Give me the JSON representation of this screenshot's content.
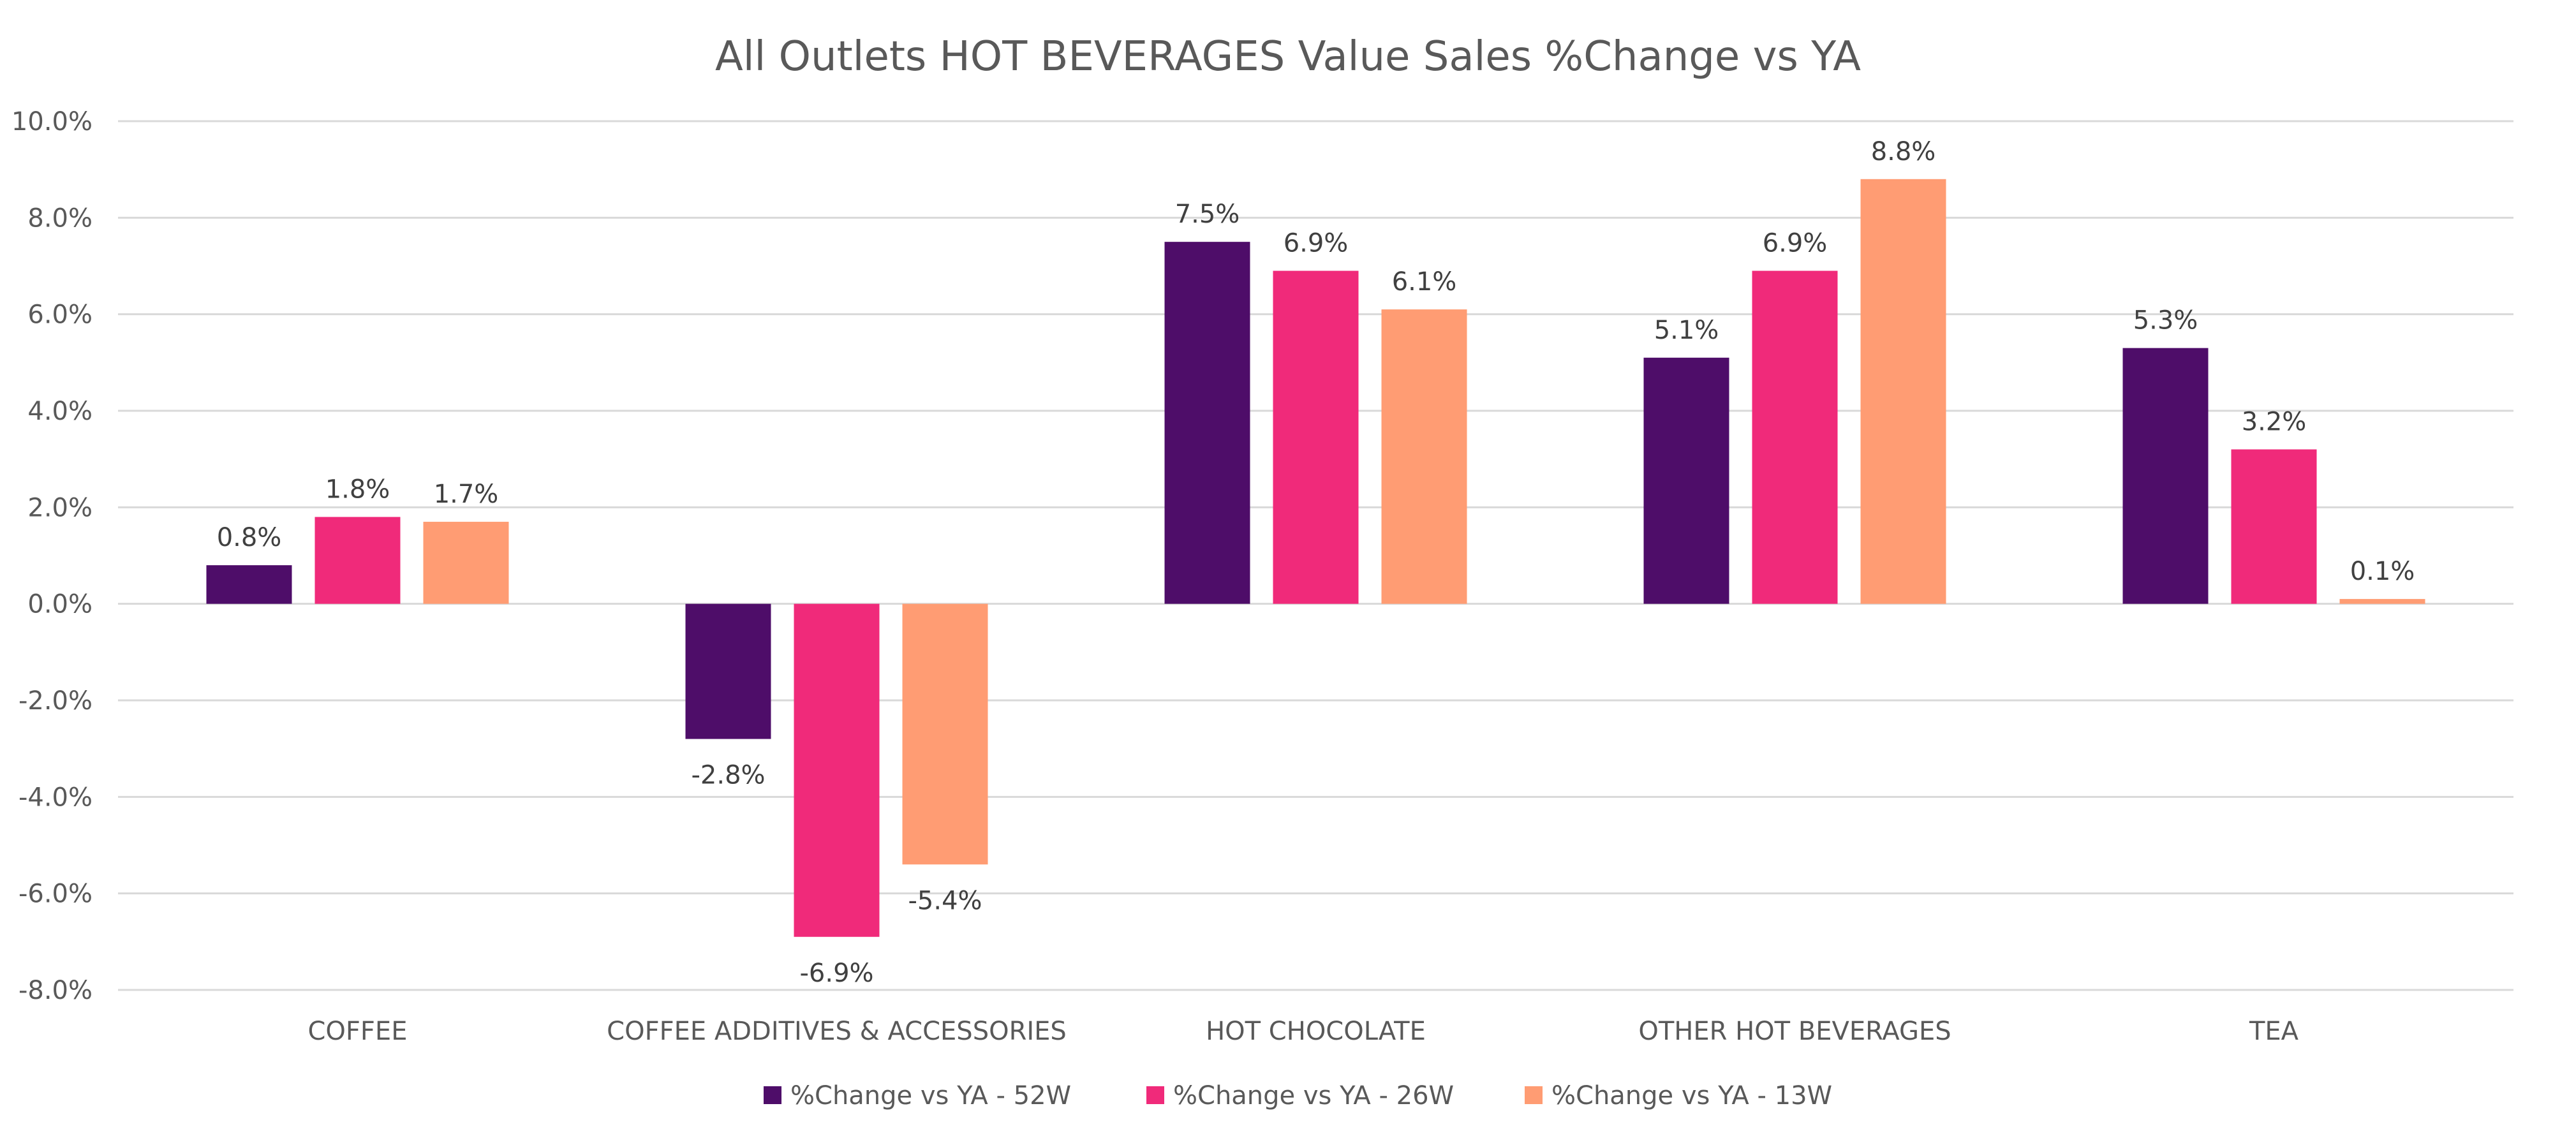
{
  "chart_data": {
    "type": "bar",
    "title": "All Outlets HOT BEVERAGES Value Sales %Change vs YA",
    "xlabel": "",
    "ylabel": "",
    "categories": [
      "COFFEE",
      "COFFEE ADDITIVES & ACCESSORIES",
      "HOT CHOCOLATE",
      "OTHER HOT BEVERAGES",
      "TEA"
    ],
    "series": [
      {
        "name": "%Change vs YA -  52W",
        "color": "#4e0d69",
        "values": [
          0.8,
          -2.8,
          7.5,
          5.1,
          5.3
        ],
        "labels": [
          "0.8%",
          "-2.8%",
          "7.5%",
          "5.1%",
          "5.3%"
        ]
      },
      {
        "name": "%Change vs YA -  26W",
        "color": "#f02a7a",
        "values": [
          1.8,
          -6.9,
          6.9,
          6.9,
          3.2
        ],
        "labels": [
          "1.8%",
          "-6.9%",
          "6.9%",
          "6.9%",
          "3.2%"
        ]
      },
      {
        "name": "%Change vs YA -  13W",
        "color": "#ff9c73",
        "values": [
          1.7,
          -5.4,
          6.1,
          8.8,
          0.1
        ],
        "labels": [
          "1.7%",
          "-5.4%",
          "6.1%",
          "8.8%",
          "0.1%"
        ]
      }
    ],
    "ylim": [
      -8,
      10
    ],
    "yticks": [
      10,
      8,
      6,
      4,
      2,
      0,
      -2,
      -4,
      -6,
      -8
    ],
    "ytick_labels": [
      "10.0%",
      "8.0%",
      "6.0%",
      "4.0%",
      "2.0%",
      "0.0%",
      "-2.0%",
      "-4.0%",
      "-6.0%",
      "-8.0%"
    ],
    "grid": true,
    "legend_position": "bottom"
  }
}
